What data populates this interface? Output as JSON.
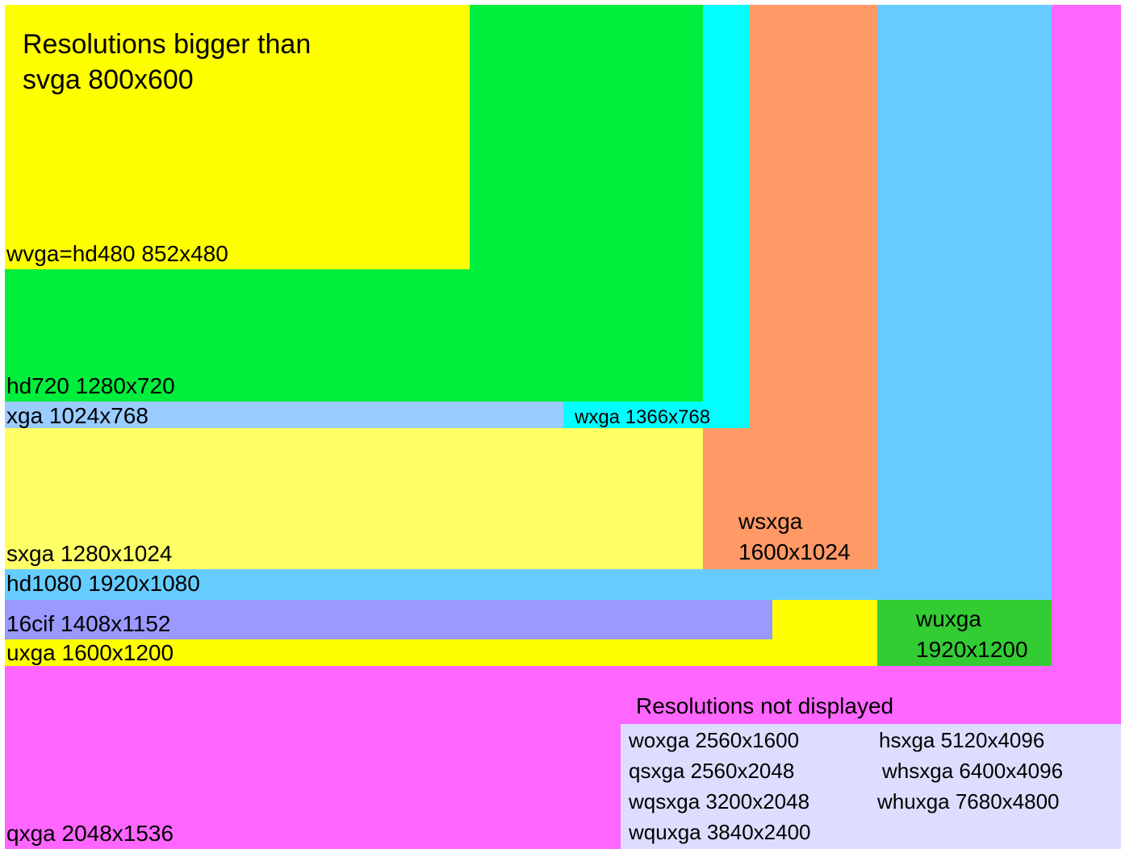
{
  "title_lines": [
    "Resolutions bigger than",
    "svga 800x600"
  ],
  "resolutions": {
    "wvga": {
      "label": "wvga=hd480 852x480",
      "color": "#ffff00"
    },
    "hd720": {
      "label": "hd720 1280x720",
      "color": "#00ee3c"
    },
    "xga": {
      "label": "xga 1024x768",
      "color": "#99ccff"
    },
    "wxga": {
      "label": "wxga 1366x768",
      "color": "#00ffff"
    },
    "sxga": {
      "label": "sxga 1280x1024",
      "color": "#ffff66"
    },
    "wsxga": {
      "label_lines": [
        "wsxga",
        "1600x1024"
      ],
      "color": "#ff9966"
    },
    "hd1080": {
      "label": "hd1080 1920x1080",
      "color": "#66ccff"
    },
    "cif16": {
      "label": "16cif 1408x1152",
      "color": "#9999ff"
    },
    "uxga": {
      "label": "uxga 1600x1200",
      "color": "#ffff00"
    },
    "wuxga": {
      "label_lines": [
        "wuxga",
        "1920x1200"
      ],
      "color": "#33cc33"
    },
    "qxga": {
      "label": "qxga 2048x1536",
      "color": "#ff66ff"
    }
  },
  "not_displayed": {
    "title": "Resolutions not displayed",
    "color": "#ddddff",
    "col1": [
      "woxga 2560x1600",
      "qsxga 2560x2048",
      "wqsxga 3200x2048",
      "wquxga 3840x2400"
    ],
    "col2": [
      "hsxga 5120x4096",
      "whsxga 6400x4096",
      "whuxga 7680x4800"
    ]
  }
}
